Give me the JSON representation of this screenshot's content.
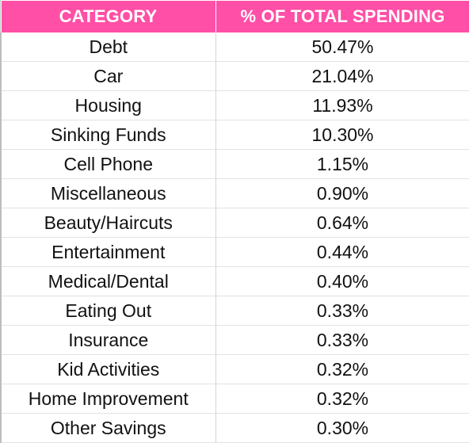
{
  "table": {
    "headers": {
      "category": "CATEGORY",
      "percent": "% OF TOTAL SPENDING"
    },
    "header_color": "#ff4fa6",
    "rows": [
      {
        "category": "Debt",
        "percent": "50.47%"
      },
      {
        "category": "Car",
        "percent": "21.04%"
      },
      {
        "category": "Housing",
        "percent": "11.93%"
      },
      {
        "category": "Sinking Funds",
        "percent": "10.30%"
      },
      {
        "category": "Cell Phone",
        "percent": "1.15%"
      },
      {
        "category": "Miscellaneous",
        "percent": "0.90%"
      },
      {
        "category": "Beauty/Haircuts",
        "percent": "0.64%"
      },
      {
        "category": "Entertainment",
        "percent": "0.44%"
      },
      {
        "category": "Medical/Dental",
        "percent": "0.40%"
      },
      {
        "category": "Eating Out",
        "percent": "0.33%"
      },
      {
        "category": "Insurance",
        "percent": "0.33%"
      },
      {
        "category": "Kid Activities",
        "percent": "0.32%"
      },
      {
        "category": "Home Improvement",
        "percent": "0.32%"
      },
      {
        "category": "Other Savings",
        "percent": "0.30%"
      }
    ]
  }
}
